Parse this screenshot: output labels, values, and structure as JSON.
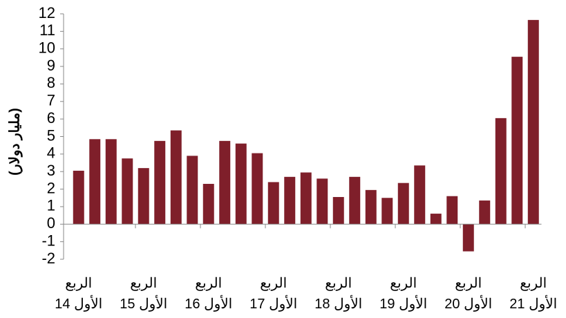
{
  "chart_data": {
    "type": "bar",
    "y_label": "(مليار دولار)",
    "categories": [
      "الربع الأول 14",
      null,
      null,
      null,
      "الربع الأول 15",
      null,
      null,
      null,
      "الربع الأول 16",
      null,
      null,
      null,
      "الربع الأول 17",
      null,
      null,
      null,
      "الربع الأول 18",
      null,
      null,
      null,
      "الربع الأول 19",
      null,
      null,
      null,
      "الربع الأول 20",
      null,
      null,
      null,
      "الربع الأول 21"
    ],
    "values": [
      3.05,
      4.85,
      4.85,
      3.75,
      3.2,
      4.75,
      5.35,
      3.9,
      2.3,
      4.75,
      4.6,
      4.05,
      2.4,
      2.7,
      2.95,
      2.6,
      1.55,
      2.7,
      1.95,
      1.5,
      2.35,
      3.35,
      0.6,
      1.6,
      -1.55,
      1.35,
      6.05,
      9.55,
      11.65
    ],
    "color": "#7f1f2a",
    "ylim": [
      -2,
      12
    ],
    "yticks": [
      -2,
      -1,
      0,
      1,
      2,
      3,
      4,
      5,
      6,
      7,
      8,
      9,
      10,
      11,
      12
    ],
    "grid": false
  }
}
